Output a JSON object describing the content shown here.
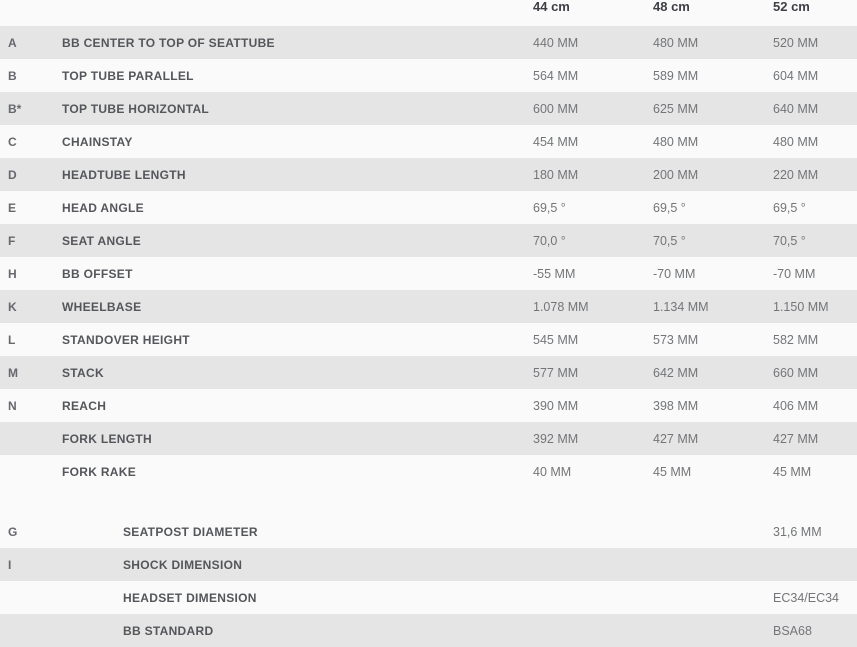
{
  "colors": {
    "background": "#fafafa",
    "row_shade": "#e5e5e5",
    "label_text": "#54565a",
    "letter_text": "#66686d",
    "value_text": "#737578",
    "header_text": "#3e4045"
  },
  "size_header": {
    "columns": [
      "44 cm",
      "48 cm",
      "52 cm"
    ]
  },
  "geometry_table": {
    "rows": [
      {
        "letter": "A",
        "label": "BB CENTER TO TOP OF SEATTUBE",
        "values": [
          "440 MM",
          "480 MM",
          "520 MM"
        ]
      },
      {
        "letter": "B",
        "label": "TOP TUBE PARALLEL",
        "values": [
          "564 MM",
          "589 MM",
          "604 MM"
        ]
      },
      {
        "letter": "B*",
        "label": "TOP TUBE HORIZONTAL",
        "values": [
          "600 MM",
          "625 MM",
          "640 MM"
        ]
      },
      {
        "letter": "C",
        "label": "CHAINSTAY",
        "values": [
          "454 MM",
          "480 MM",
          "480 MM"
        ]
      },
      {
        "letter": "D",
        "label": "HEADTUBE LENGTH",
        "values": [
          "180 MM",
          "200 MM",
          "220 MM"
        ]
      },
      {
        "letter": "E",
        "label": "HEAD ANGLE",
        "values": [
          "69,5 °",
          "69,5 °",
          "69,5 °"
        ]
      },
      {
        "letter": "F",
        "label": "SEAT ANGLE",
        "values": [
          "70,0 °",
          "70,5 °",
          "70,5 °"
        ]
      },
      {
        "letter": "H",
        "label": "BB OFFSET",
        "values": [
          "-55 MM",
          "-70 MM",
          "-70 MM"
        ]
      },
      {
        "letter": "K",
        "label": "WHEELBASE",
        "values": [
          "1.078 MM",
          "1.134 MM",
          "1.150 MM"
        ]
      },
      {
        "letter": "L",
        "label": "STANDOVER HEIGHT",
        "values": [
          "545 MM",
          "573 MM",
          "582 MM"
        ]
      },
      {
        "letter": "M",
        "label": "STACK",
        "values": [
          "577 MM",
          "642 MM",
          "660 MM"
        ]
      },
      {
        "letter": "N",
        "label": "REACH",
        "values": [
          "390 MM",
          "398 MM",
          "406 MM"
        ]
      },
      {
        "letter": "",
        "label": "FORK LENGTH",
        "values": [
          "392 MM",
          "427 MM",
          "427 MM"
        ]
      },
      {
        "letter": "",
        "label": "FORK RAKE",
        "values": [
          "40 MM",
          "45 MM",
          "45 MM"
        ]
      }
    ]
  },
  "components_table": {
    "rows": [
      {
        "letter": "G",
        "label": "SEATPOST DIAMETER",
        "value": "31,6 MM"
      },
      {
        "letter": "I",
        "label": "SHOCK DIMENSION",
        "value": ""
      },
      {
        "letter": "",
        "label": "HEADSET DIMENSION",
        "value": "EC34/EC34"
      },
      {
        "letter": "",
        "label": "BB STANDARD",
        "value": "BSA68"
      }
    ]
  }
}
